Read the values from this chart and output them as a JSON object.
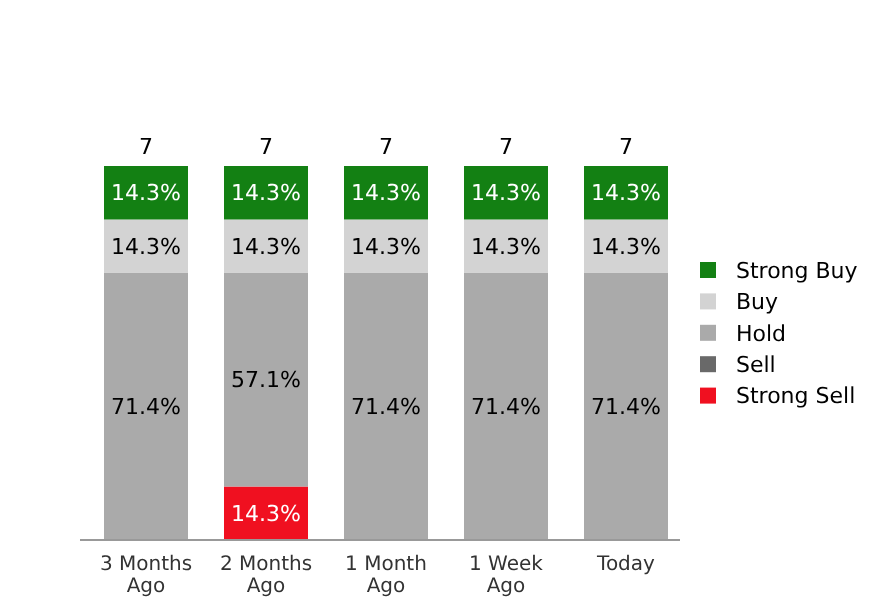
{
  "chart_data": {
    "type": "bar",
    "stacked": true,
    "categories": [
      "3 Months Ago",
      "2 Months Ago",
      "1 Month Ago",
      "1 Week Ago",
      "Today"
    ],
    "tick_labels": "x",
    "legend": "right",
    "annotations": [
      {
        "text": "7",
        "x": "3 Months Ago",
        "y": 100
      },
      {
        "text": "7",
        "x": "2 Months Ago",
        "y": 100
      },
      {
        "text": "7",
        "x": "1 Month Ago",
        "y": 100
      },
      {
        "text": "7",
        "x": "1 Week Ago",
        "y": 100
      },
      {
        "text": "7",
        "x": "Today",
        "y": 100
      }
    ],
    "series": [
      {
        "name": "Strong Sell",
        "color": "#f01020",
        "values": [
          null,
          14.3,
          null,
          null,
          null
        ],
        "value_labels": [
          null,
          "14.3%",
          null,
          null,
          null
        ]
      },
      {
        "name": "Sell",
        "color": "#696969",
        "values": [
          null,
          null,
          null,
          null,
          null
        ]
      },
      {
        "name": "Hold",
        "color": "#aaaaaa",
        "values": [
          71.4,
          57.1,
          71.4,
          71.4,
          71.4
        ],
        "value_labels": [
          "71.4%",
          "57.1%",
          "71.4%",
          "71.4%",
          "71.4%"
        ]
      },
      {
        "name": "Buy",
        "color": "#d3d3d3",
        "values": [
          14.3,
          14.3,
          14.3,
          14.3,
          14.3
        ],
        "value_labels": [
          "14.3%",
          "14.3%",
          "14.3%",
          "14.3%",
          "14.3%"
        ]
      },
      {
        "name": "Strong Buy",
        "color": "#138013",
        "values": [
          14.3,
          14.3,
          14.3,
          14.3,
          14.3
        ],
        "value_labels": [
          "14.3%",
          "14.3%",
          "14.3%",
          "14.3%",
          "14.3%"
        ]
      }
    ]
  }
}
